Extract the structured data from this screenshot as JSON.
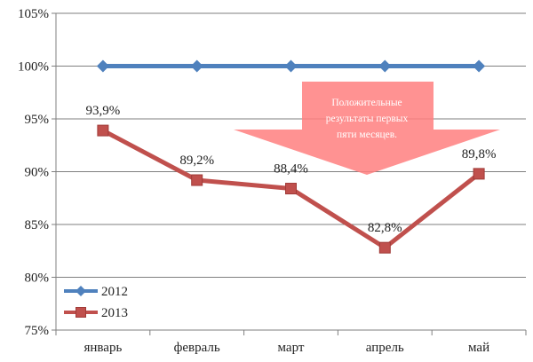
{
  "chart_data": {
    "type": "line",
    "categories": [
      "январь",
      "февраль",
      "март",
      "апрель",
      "май"
    ],
    "series": [
      {
        "name": "2012",
        "values": [
          100,
          100,
          100,
          100,
          100
        ],
        "color": "#4F81BD",
        "marker": "diamond"
      },
      {
        "name": "2013",
        "values": [
          93.9,
          89.2,
          88.4,
          82.8,
          89.8
        ],
        "color": "#C0504D",
        "marker": "square",
        "labels": [
          "93,9%",
          "89,2%",
          "88,4%",
          "82,8%",
          "89,8%"
        ]
      }
    ],
    "ylim": [
      75,
      105
    ],
    "yticks": [
      75,
      80,
      85,
      90,
      95,
      100,
      105
    ],
    "ytick_labels": [
      "75%",
      "80%",
      "85%",
      "90%",
      "95%",
      "100%",
      "105%"
    ],
    "grid": true,
    "legend_position": "bottom-left",
    "annotation": {
      "lines": [
        "Положительные",
        "результаты первых",
        "пяти месяцев."
      ],
      "color": "#FF7F7F"
    }
  }
}
